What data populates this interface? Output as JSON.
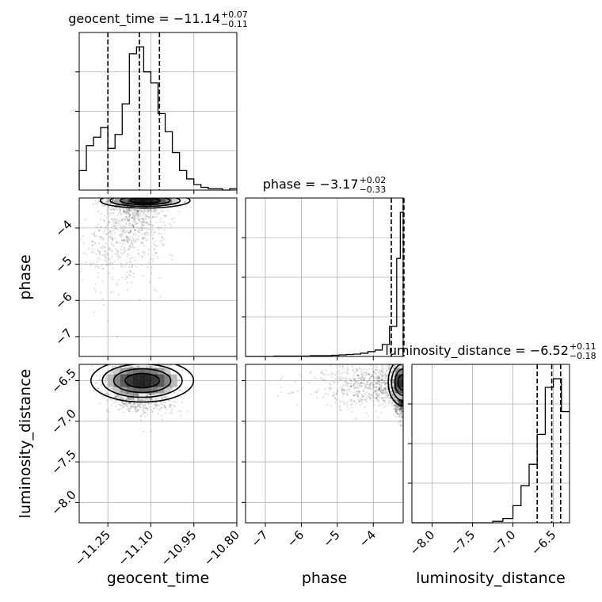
{
  "chart_data": {
    "type": "corner",
    "parameters": [
      "geocent_time",
      "phase",
      "luminosity_distance"
    ],
    "axis_labels": {
      "x": [
        "geocent_time",
        "phase",
        "luminosity_distance"
      ],
      "y": [
        "phase",
        "luminosity_distance"
      ]
    },
    "titles": [
      {
        "param": "geocent_time",
        "prefix": "geocent_time = ",
        "median": "−11.14",
        "plus": "+0.07",
        "minus": "−0.11"
      },
      {
        "param": "phase",
        "prefix": "phase = ",
        "median": "−3.17",
        "plus": "+0.02",
        "minus": "−0.33"
      },
      {
        "param": "luminosity_distance",
        "prefix": "luminosity_distance = ",
        "median": "−6.52",
        "plus": "+0.11",
        "minus": "−0.18"
      }
    ],
    "ranges": {
      "geocent_time": [
        -11.35,
        -10.8
      ],
      "phase": [
        -7.55,
        -3.17
      ],
      "luminosity_distance": [
        -8.25,
        -6.3
      ]
    },
    "ticks": {
      "geocent_time": [
        -11.25,
        -11.1,
        -10.95,
        -10.8
      ],
      "phase": [
        -7,
        -6,
        -5,
        -4
      ],
      "luminosity_distance": [
        -8.0,
        -7.5,
        -7.0,
        -6.5
      ]
    },
    "tick_labels": {
      "geocent_time": [
        "−11.25",
        "−11.10",
        "−10.95",
        "−10.80"
      ],
      "phase": [
        "−7",
        "−6",
        "−5",
        "−4"
      ],
      "luminosity_distance": [
        "−8.0",
        "−7.5",
        "−7.0",
        "−6.5"
      ]
    },
    "quantiles": {
      "geocent_time": [
        -11.25,
        -11.14,
        -11.07
      ],
      "phase": [
        -3.5,
        -3.17,
        -3.15
      ],
      "luminosity_distance": [
        -6.7,
        -6.52,
        -6.41
      ]
    },
    "histograms": {
      "geocent_time": {
        "edges": [
          -11.35,
          -11.325,
          -11.3,
          -11.275,
          -11.25,
          -11.225,
          -11.2,
          -11.175,
          -11.15,
          -11.125,
          -11.1,
          -11.075,
          -11.05,
          -11.025,
          -11.0,
          -10.975,
          -10.95,
          -10.925,
          -10.9,
          -10.875,
          -10.85,
          -10.825,
          -10.8
        ],
        "counts": [
          14,
          32,
          38,
          45,
          30,
          40,
          62,
          98,
          103,
          85,
          77,
          55,
          42,
          27,
          14,
          8,
          4,
          2,
          1,
          1,
          0,
          1
        ]
      },
      "phase": {
        "edges": [
          -7.55,
          -7.35,
          -7.15,
          -6.95,
          -6.75,
          -6.55,
          -6.35,
          -6.15,
          -5.95,
          -5.75,
          -5.55,
          -5.35,
          -5.15,
          -4.95,
          -4.75,
          -4.55,
          -4.35,
          -4.15,
          -3.95,
          -3.75,
          -3.55,
          -3.35,
          -3.25,
          -3.17
        ],
        "counts": [
          0,
          0,
          0,
          0,
          1,
          1,
          1,
          1,
          1,
          2,
          2,
          2,
          3,
          4,
          5,
          6,
          8,
          12,
          16,
          30,
          75,
          245,
          360
        ]
      },
      "luminosity_distance": {
        "edges": [
          -8.25,
          -8.125,
          -8.0,
          -7.875,
          -7.75,
          -7.625,
          -7.5,
          -7.375,
          -7.25,
          -7.125,
          -7.0,
          -6.9,
          -6.8,
          -6.7,
          -6.6,
          -6.5,
          -6.4,
          -6.3
        ],
        "counts": [
          0,
          0,
          0,
          0,
          0,
          0,
          0,
          0,
          1,
          3,
          12,
          26,
          41,
          62,
          95,
          101,
          78
        ]
      }
    },
    "grid": true,
    "legend": "none"
  }
}
